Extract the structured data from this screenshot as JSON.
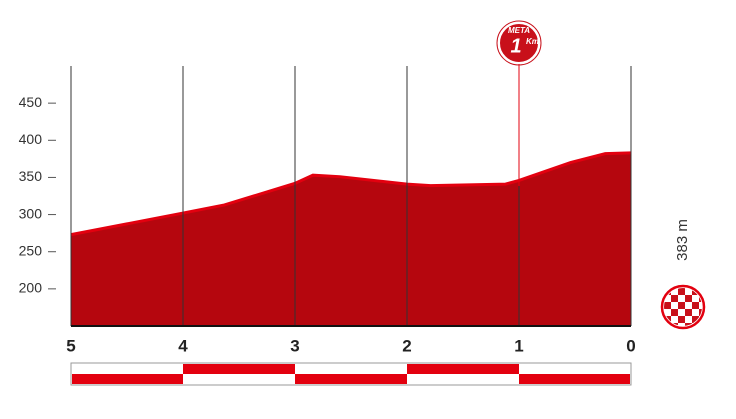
{
  "chart_data": {
    "type": "area",
    "x": [
      5,
      4,
      3.63,
      3,
      2.84,
      2.6,
      2,
      1.79,
      1.12,
      1,
      0.54,
      0.23,
      0
    ],
    "values": [
      273,
      302,
      313,
      342,
      353,
      351,
      341,
      339,
      341,
      346,
      370,
      382,
      383
    ],
    "color": "#b5060e",
    "xlim": [
      5,
      0
    ],
    "ylim": [
      150,
      500
    ],
    "xticks": [
      5,
      4,
      3,
      2,
      1,
      0
    ],
    "yticks": [
      200,
      250,
      300,
      350,
      400,
      450
    ],
    "grid": true,
    "marker": {
      "title": "META",
      "km": 1,
      "unit": "Km"
    },
    "finish_label": "383 m"
  }
}
